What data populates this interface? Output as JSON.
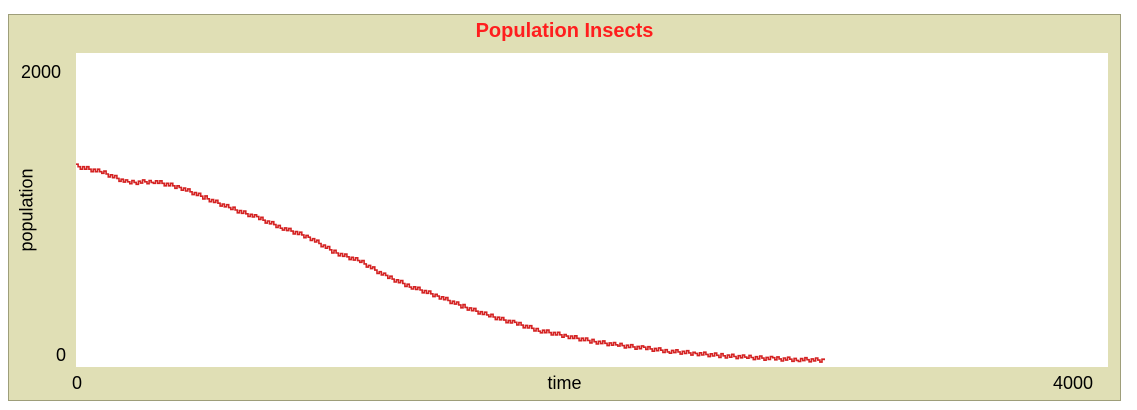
{
  "chart_data": {
    "type": "line",
    "title": "Population Insects",
    "xlabel": "time",
    "ylabel": "population",
    "xlim": [
      0,
      4000
    ],
    "ylim": [
      0,
      2000
    ],
    "x_tick_labels": [
      "0",
      "4000"
    ],
    "y_tick_labels": [
      "2000",
      "0"
    ],
    "grid": false,
    "series": [
      {
        "color": "#d42222",
        "x": [
          0,
          100,
          200,
          300,
          400,
          500,
          600,
          700,
          800,
          900,
          1000,
          1100,
          1200,
          1300,
          1400,
          1500,
          1600,
          1700,
          1800,
          1900,
          2000,
          2100,
          2200,
          2300,
          2400,
          2500,
          2600,
          2700,
          2800,
          2900
        ],
        "y": [
          1290,
          1250,
          1180,
          1190,
          1150,
          1080,
          1010,
          950,
          880,
          820,
          720,
          660,
          560,
          490,
          430,
          360,
          300,
          250,
          200,
          165,
          130,
          105,
          85,
          65,
          50,
          35,
          25,
          15,
          10,
          5
        ]
      }
    ]
  }
}
